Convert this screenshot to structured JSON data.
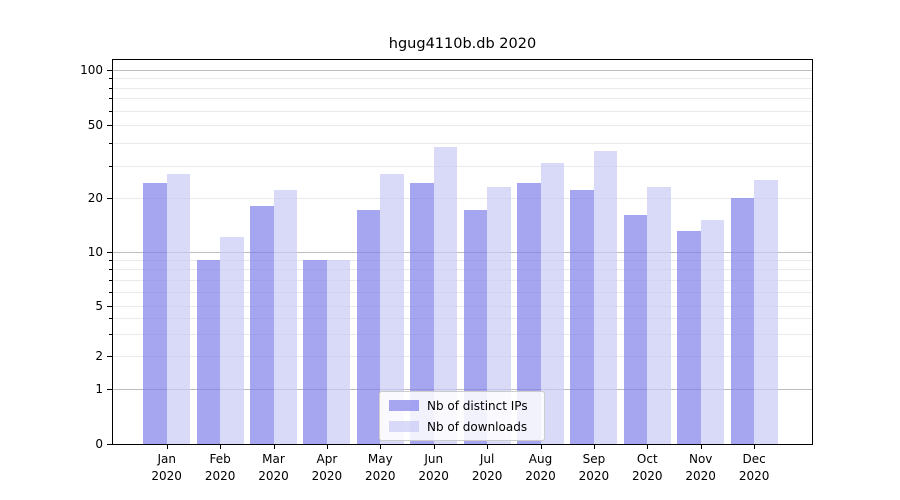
{
  "title": "hgug4110b.db 2020",
  "colors": {
    "distinct_ips": "#8080ea",
    "downloads": "#c9c9f5",
    "bar_alpha": 0.7,
    "major_grid": "#bdbdbd",
    "minor_grid": "#eaeaea",
    "axis": "#000000",
    "legend_border": "#cccccc"
  },
  "legend": {
    "items": [
      {
        "label": "Nb of distinct IPs",
        "series": "distinct_ips"
      },
      {
        "label": "Nb of downloads",
        "series": "downloads"
      }
    ]
  },
  "axes": {
    "ytick_values": [
      0,
      1,
      2,
      5,
      10,
      20,
      50,
      100
    ],
    "ytick_labels": [
      "0",
      "1",
      "2",
      "5",
      "10",
      "20",
      "50",
      "100"
    ],
    "ytick_minor_values": [
      3,
      4,
      6,
      7,
      8,
      9,
      30,
      40,
      60,
      70,
      80,
      90
    ],
    "y_major_decades": [
      1,
      10,
      100
    ],
    "xtick_months": [
      "Jan",
      "Feb",
      "Mar",
      "Apr",
      "May",
      "Jun",
      "Jul",
      "Aug",
      "Sep",
      "Oct",
      "Nov",
      "Dec"
    ],
    "xtick_year": "2020"
  },
  "chart_data": {
    "type": "bar",
    "title": "hgug4110b.db 2020",
    "categories": [
      "Jan 2020",
      "Feb 2020",
      "Mar 2020",
      "Apr 2020",
      "May 2020",
      "Jun 2020",
      "Jul 2020",
      "Aug 2020",
      "Sep 2020",
      "Oct 2020",
      "Nov 2020",
      "Dec 2020"
    ],
    "series": [
      {
        "name": "Nb of distinct IPs",
        "values": [
          24,
          9,
          18,
          9,
          17,
          24,
          17,
          24,
          22,
          16,
          13,
          20
        ]
      },
      {
        "name": "Nb of downloads",
        "values": [
          27,
          12,
          22,
          9,
          27,
          38,
          23,
          31,
          36,
          23,
          15,
          25
        ]
      }
    ],
    "ylabel": "",
    "xlabel": "",
    "yscale": "log-like with linear zero segment, ticks at 0,1,2,5,10,20,50,100",
    "ylim": [
      0,
      113
    ],
    "grid": "horizontal, major and minor",
    "legend_position": "lower center"
  }
}
